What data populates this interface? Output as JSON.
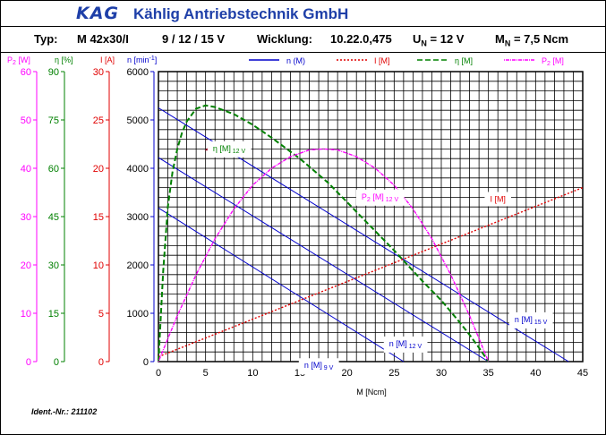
{
  "header": {
    "logo": "KAG",
    "company": "Kählig Antriebstechnik GmbH"
  },
  "specs": {
    "typ_label": "Typ:",
    "typ_value": "M 42x30/I",
    "voltages": "9 / 12 / 15 V",
    "wicklung_label": "Wicklung:",
    "wicklung_value": "10.22.0,475",
    "un_label": "U",
    "un_sub": "N",
    "un_value": "= 12 V",
    "mn_label": "M",
    "mn_sub": "N",
    "mn_value": "= 7,5 Ncm"
  },
  "ident": "Ident.-Nr.: 211102",
  "chart_data": {
    "type": "line",
    "xlabel": "M [Ncm]",
    "xlim": [
      0,
      45
    ],
    "x_ticks": [
      0,
      5,
      10,
      15,
      20,
      25,
      30,
      35,
      40,
      45
    ],
    "axes": [
      {
        "name": "P2",
        "label": "P",
        "label_sub": "2",
        "label_unit": " [W]",
        "range": [
          0,
          60
        ],
        "ticks": [
          0,
          10,
          20,
          30,
          40,
          50,
          60
        ],
        "color": "#ff00ff"
      },
      {
        "name": "eta",
        "label": "η [%]",
        "range": [
          0,
          90
        ],
        "ticks": [
          0,
          15,
          30,
          45,
          60,
          75,
          90
        ],
        "color": "#008000"
      },
      {
        "name": "I",
        "label": "I [A]",
        "range": [
          0,
          30
        ],
        "ticks": [
          0,
          5,
          10,
          15,
          20,
          25,
          30
        ],
        "color": "#e00000"
      },
      {
        "name": "n",
        "label": "n [min",
        "label_sup": "-1",
        "label_end": "]",
        "range": [
          0,
          6000
        ],
        "ticks": [
          0,
          1000,
          2000,
          3000,
          4000,
          5000,
          6000
        ],
        "color": "#0000cc"
      }
    ],
    "legend": [
      {
        "label": "n (M)",
        "color": "#0000cc",
        "dash": ""
      },
      {
        "label": "I [M]",
        "color": "#e00000",
        "dash": "2,2"
      },
      {
        "label": "η [M]",
        "color": "#008000",
        "dash": "6,3"
      },
      {
        "label": "P2 [M]",
        "label_main": "P",
        "label_sub": "2",
        "label_end": " [M]",
        "color": "#ff00ff",
        "dash": "1,1,4,1"
      }
    ],
    "series": [
      {
        "name": "n 9 V",
        "axis": "n",
        "x": [
          0,
          26
        ],
        "y": [
          3180,
          0
        ]
      },
      {
        "name": "n 12 V",
        "axis": "n",
        "x": [
          0,
          35
        ],
        "y": [
          4220,
          0
        ]
      },
      {
        "name": "n 15 V",
        "axis": "n",
        "x": [
          0,
          43.5
        ],
        "y": [
          5250,
          0
        ]
      },
      {
        "name": "I 12 V",
        "axis": "I",
        "x": [
          0,
          45
        ],
        "y": [
          0.5,
          18
        ]
      },
      {
        "name": "η 12 V",
        "axis": "eta",
        "x": [
          0,
          0.5,
          1,
          1.5,
          2,
          2.5,
          3,
          4,
          5,
          6,
          8,
          10,
          12,
          15,
          18,
          20,
          22,
          25,
          28,
          30,
          32,
          33,
          34,
          35
        ],
        "y": [
          0,
          28,
          48,
          59,
          66,
          71,
          74.5,
          78.5,
          79.5,
          79,
          76.8,
          73.5,
          69.5,
          63,
          55.5,
          49.5,
          43.5,
          34.5,
          25,
          19,
          12,
          8.3,
          4.3,
          0
        ]
      },
      {
        "name": "P2 12 V",
        "axis": "P2",
        "x": [
          0,
          2,
          4,
          6,
          8,
          10,
          12,
          14,
          16,
          17.5,
          19,
          21,
          23,
          25,
          27,
          29,
          31,
          33,
          35
        ],
        "y": [
          0,
          9.5,
          18,
          25.4,
          31.6,
          36.5,
          40,
          42.4,
          43.8,
          44,
          43.8,
          42.4,
          40,
          36.5,
          31.6,
          25.4,
          18,
          9.5,
          0
        ]
      }
    ],
    "annotations": [
      {
        "label": "η [M]",
        "sub": "12 V",
        "color": "#008000",
        "at": [
          7.5,
          4430
        ]
      },
      {
        "label": "P",
        "sub2": "2",
        "rest": " [M]",
        "sub": "12 V",
        "color": "#ff00ff",
        "at": [
          23.5,
          3430
        ]
      },
      {
        "label": "I [M]",
        "sub": "",
        "color": "#e00000",
        "at": [
          36,
          3380
        ]
      },
      {
        "label": "n [M]",
        "sub": "15 V",
        "color": "#0000cc",
        "at": [
          39.5,
          890
        ]
      },
      {
        "label": "n [M]",
        "sub": "12 V",
        "color": "#0000cc",
        "at": [
          26.2,
          390
        ]
      },
      {
        "label": "n [M]",
        "sub": "9 V",
        "color": "#0000cc",
        "at": [
          17,
          -60
        ]
      }
    ],
    "arrow": {
      "from": [
        8.5,
        4450
      ],
      "to": [
        4.9,
        4370
      ],
      "color": "#a00020"
    }
  }
}
